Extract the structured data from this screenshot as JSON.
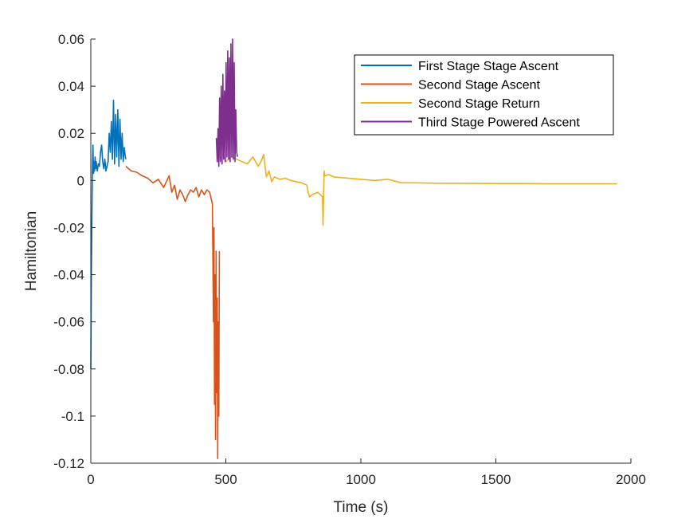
{
  "chart_data": {
    "type": "line",
    "title": "",
    "xlabel": "Time (s)",
    "ylabel": "Hamiltonian",
    "xlim": [
      0,
      2000
    ],
    "ylim": [
      -0.12,
      0.06
    ],
    "xticks": [
      0,
      500,
      1000,
      1500,
      2000
    ],
    "xtick_labels": [
      "0",
      "500",
      "1000",
      "1500",
      "2000"
    ],
    "yticks": [
      -0.12,
      -0.1,
      -0.08,
      -0.06,
      -0.04,
      -0.02,
      0,
      0.02,
      0.04,
      0.06
    ],
    "ytick_labels": [
      "-0.12",
      "-0.1",
      "-0.08",
      "-0.06",
      "-0.04",
      "-0.02",
      "0",
      "0.02",
      "0.04",
      "0.06"
    ],
    "grid": false,
    "legend_position": "top-right",
    "series": [
      {
        "name": "First Stage Stage Ascent",
        "color": "#0072BD",
        "x": [
          0,
          2,
          4,
          6,
          8,
          10,
          12,
          14,
          16,
          18,
          20,
          24,
          28,
          32,
          36,
          40,
          44,
          48,
          52,
          56,
          60,
          64,
          68,
          72,
          76,
          80,
          84,
          88,
          92,
          96,
          100,
          104,
          108,
          112,
          116,
          120,
          124,
          128,
          130
        ],
        "y": [
          -0.08,
          -0.04,
          -0.015,
          0.005,
          0.015,
          0.003,
          0.008,
          0.004,
          0.01,
          0.005,
          0.008,
          0.004,
          0.007,
          0.006,
          0.012,
          0.015,
          0.008,
          0.005,
          0.009,
          0.004,
          0.006,
          0.008,
          0.02,
          0.012,
          0.025,
          0.009,
          0.034,
          0.007,
          0.028,
          0.01,
          0.03,
          0.006,
          0.026,
          0.009,
          0.02,
          0.008,
          0.014,
          0.01,
          0.009
        ]
      },
      {
        "name": "Second Stage Ascent",
        "color": "#D95319",
        "x": [
          130,
          150,
          170,
          190,
          210,
          230,
          250,
          270,
          290,
          300,
          310,
          320,
          330,
          340,
          350,
          360,
          370,
          380,
          390,
          400,
          410,
          420,
          430,
          440,
          450,
          452,
          454,
          456,
          458,
          460,
          462,
          464,
          466,
          468,
          470,
          472,
          474,
          476
        ],
        "y": [
          0.006,
          0.004,
          0.0035,
          0.002,
          0.001,
          -0.001,
          0.0005,
          -0.003,
          0.002,
          -0.005,
          -0.002,
          -0.008,
          -0.004,
          -0.006,
          -0.009,
          -0.006,
          -0.004,
          -0.005,
          -0.003,
          -0.007,
          -0.004,
          -0.006,
          -0.004,
          -0.005,
          -0.01,
          -0.03,
          -0.06,
          -0.02,
          -0.095,
          -0.04,
          -0.11,
          -0.03,
          -0.09,
          -0.05,
          -0.118,
          -0.06,
          -0.1,
          -0.03
        ]
      },
      {
        "name": "Second Stage Return",
        "color": "#EDB120",
        "x": [
          476,
          480,
          490,
          500,
          520,
          540,
          560,
          580,
          600,
          620,
          630,
          640,
          650,
          660,
          670,
          680,
          700,
          720,
          740,
          760,
          780,
          800,
          805,
          810,
          820,
          840,
          850,
          858,
          860,
          862,
          864,
          866,
          870,
          880,
          900,
          950,
          1000,
          1050,
          1100,
          1150,
          1200,
          1300,
          1400,
          1500,
          1600,
          1700,
          1800,
          1900,
          1950
        ],
        "y": [
          0.012,
          0.009,
          0.011,
          0.008,
          0.01,
          0.009,
          0.008,
          0.007,
          0.01,
          0.006,
          0.008,
          0.011,
          0.0015,
          0.004,
          -0.0005,
          0.0015,
          0.0005,
          0.001,
          0.0,
          -0.0005,
          -0.001,
          -0.002,
          -0.005,
          -0.007,
          -0.006,
          -0.005,
          -0.006,
          -0.007,
          -0.019,
          -0.007,
          0.004,
          0.002,
          0.002,
          0.0025,
          0.0015,
          0.001,
          0.0005,
          0.0,
          0.0005,
          -0.001,
          -0.001,
          -0.0012,
          -0.0012,
          -0.0013,
          -0.0013,
          -0.0014,
          -0.0014,
          -0.0014,
          -0.0014
        ]
      },
      {
        "name": "Third Stage Powered Ascent",
        "color": "#7E2F8E",
        "x": [
          465,
          468,
          471,
          474,
          477,
          480,
          483,
          486,
          489,
          492,
          495,
          498,
          501,
          504,
          507,
          510,
          513,
          516,
          519,
          522,
          525,
          528,
          531,
          534,
          537,
          540,
          543
        ],
        "y": [
          0.018,
          0.008,
          0.022,
          0.006,
          0.035,
          0.008,
          0.04,
          0.007,
          0.045,
          0.009,
          0.038,
          0.008,
          0.05,
          0.01,
          0.055,
          0.009,
          0.052,
          0.008,
          0.058,
          0.01,
          0.06,
          0.009,
          0.05,
          0.008,
          0.03,
          0.012,
          0.01
        ]
      }
    ]
  }
}
